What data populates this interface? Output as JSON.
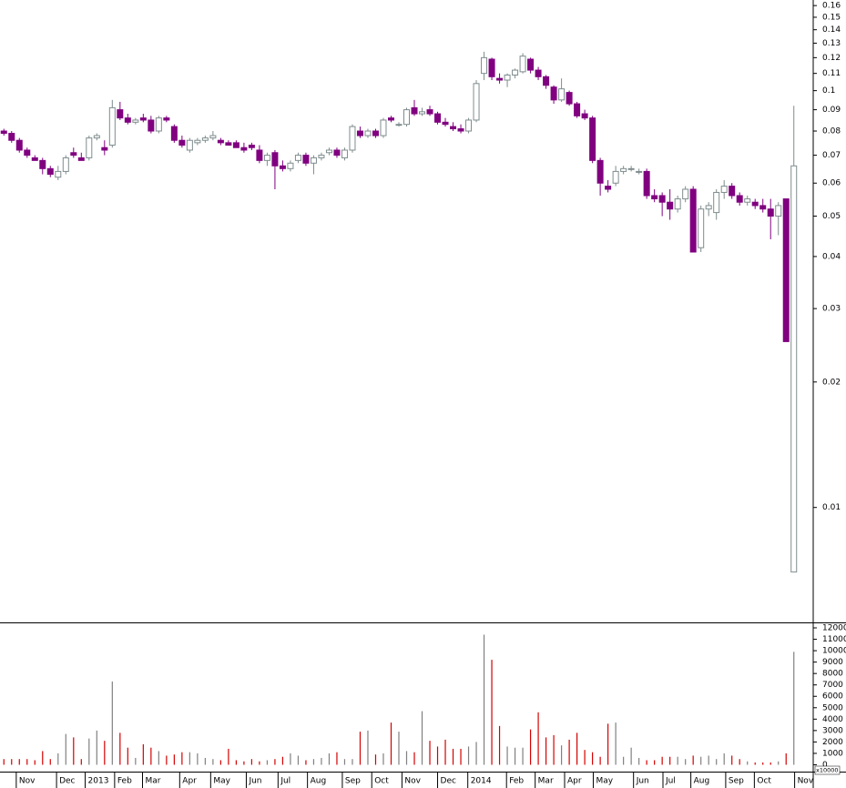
{
  "chart_data": {
    "type": "candlestick",
    "log_scale": true,
    "ylim": [
      0.0053,
      0.165
    ],
    "yticks": [
      0.01,
      0.02,
      0.03,
      0.04,
      0.05,
      0.06,
      0.07,
      0.08,
      0.09,
      0.1,
      0.11,
      0.12,
      0.13,
      0.14,
      0.15,
      0.16
    ],
    "up_color": "#ffffff",
    "up_edge": "#7f8c8d",
    "down_color": "#800080",
    "xlim": [
      -0.5,
      104.5
    ],
    "xticks": [
      {
        "value": 1.6,
        "label": "Nov"
      },
      {
        "value": 6.8,
        "label": "Dec"
      },
      {
        "value": 10.5,
        "label": "2013"
      },
      {
        "value": 14.3,
        "label": "Feb"
      },
      {
        "value": 17.9,
        "label": "Mar"
      },
      {
        "value": 22.7,
        "label": "Apr"
      },
      {
        "value": 26.7,
        "label": "May"
      },
      {
        "value": 31.3,
        "label": "Jun"
      },
      {
        "value": 35.4,
        "label": "Jul"
      },
      {
        "value": 39.2,
        "label": "Aug"
      },
      {
        "value": 43.7,
        "label": "Sep"
      },
      {
        "value": 47.5,
        "label": "Oct"
      },
      {
        "value": 51.4,
        "label": "Nov"
      },
      {
        "value": 56,
        "label": "Dec"
      },
      {
        "value": 59.9,
        "label": "2014"
      },
      {
        "value": 64.9,
        "label": "Feb"
      },
      {
        "value": 68.6,
        "label": "Mar"
      },
      {
        "value": 72.4,
        "label": "Apr"
      },
      {
        "value": 76.1,
        "label": "May"
      },
      {
        "value": 81.3,
        "label": "Jun"
      },
      {
        "value": 85.1,
        "label": "Jul"
      },
      {
        "value": 88.7,
        "label": "Aug"
      },
      {
        "value": 93.2,
        "label": "Sep"
      },
      {
        "value": 96.9,
        "label": "Oct"
      },
      {
        "value": 102.1,
        "label": "Nov"
      }
    ],
    "ohlc": [
      [
        0.08,
        0.081,
        0.078,
        0.079
      ],
      [
        0.079,
        0.08,
        0.075,
        0.076
      ],
      [
        0.076,
        0.077,
        0.071,
        0.072
      ],
      [
        0.072,
        0.073,
        0.069,
        0.07
      ],
      [
        0.069,
        0.07,
        0.068,
        0.068
      ],
      [
        0.068,
        0.069,
        0.063,
        0.065
      ],
      [
        0.065,
        0.066,
        0.062,
        0.063
      ],
      [
        0.062,
        0.066,
        0.061,
        0.064
      ],
      [
        0.064,
        0.07,
        0.063,
        0.069
      ],
      [
        0.071,
        0.073,
        0.069,
        0.07
      ],
      [
        0.069,
        0.071,
        0.068,
        0.068
      ],
      [
        0.069,
        0.078,
        0.068,
        0.077
      ],
      [
        0.077,
        0.079,
        0.076,
        0.078
      ],
      [
        0.073,
        0.076,
        0.07,
        0.072
      ],
      [
        0.074,
        0.095,
        0.073,
        0.091
      ],
      [
        0.09,
        0.094,
        0.085,
        0.086
      ],
      [
        0.086,
        0.088,
        0.083,
        0.084
      ],
      [
        0.084,
        0.086,
        0.083,
        0.085
      ],
      [
        0.086,
        0.088,
        0.084,
        0.085
      ],
      [
        0.085,
        0.087,
        0.079,
        0.08
      ],
      [
        0.08,
        0.087,
        0.079,
        0.086
      ],
      [
        0.086,
        0.087,
        0.084,
        0.085
      ],
      [
        0.082,
        0.083,
        0.075,
        0.076
      ],
      [
        0.076,
        0.078,
        0.073,
        0.074
      ],
      [
        0.072,
        0.077,
        0.071,
        0.076
      ],
      [
        0.075,
        0.077,
        0.074,
        0.076
      ],
      [
        0.076,
        0.078,
        0.075,
        0.077
      ],
      [
        0.077,
        0.08,
        0.076,
        0.078
      ],
      [
        0.076,
        0.077,
        0.074,
        0.075
      ],
      [
        0.075,
        0.076,
        0.074,
        0.074
      ],
      [
        0.075,
        0.076,
        0.073,
        0.073
      ],
      [
        0.073,
        0.075,
        0.071,
        0.072
      ],
      [
        0.074,
        0.075,
        0.072,
        0.073
      ],
      [
        0.072,
        0.074,
        0.067,
        0.068
      ],
      [
        0.068,
        0.071,
        0.066,
        0.07
      ],
      [
        0.071,
        0.072,
        0.058,
        0.066
      ],
      [
        0.066,
        0.068,
        0.064,
        0.065
      ],
      [
        0.065,
        0.068,
        0.064,
        0.067
      ],
      [
        0.068,
        0.071,
        0.067,
        0.07
      ],
      [
        0.07,
        0.071,
        0.066,
        0.067
      ],
      [
        0.067,
        0.07,
        0.063,
        0.069
      ],
      [
        0.069,
        0.071,
        0.068,
        0.07
      ],
      [
        0.071,
        0.073,
        0.07,
        0.072
      ],
      [
        0.072,
        0.073,
        0.069,
        0.07
      ],
      [
        0.069,
        0.073,
        0.068,
        0.072
      ],
      [
        0.072,
        0.083,
        0.071,
        0.082
      ],
      [
        0.08,
        0.082,
        0.077,
        0.078
      ],
      [
        0.078,
        0.081,
        0.077,
        0.08
      ],
      [
        0.08,
        0.081,
        0.077,
        0.078
      ],
      [
        0.078,
        0.086,
        0.077,
        0.085
      ],
      [
        0.086,
        0.087,
        0.084,
        0.085
      ],
      [
        0.083,
        0.084,
        0.082,
        0.083
      ],
      [
        0.083,
        0.091,
        0.082,
        0.09
      ],
      [
        0.091,
        0.095,
        0.087,
        0.088
      ],
      [
        0.088,
        0.091,
        0.087,
        0.089
      ],
      [
        0.09,
        0.092,
        0.087,
        0.088
      ],
      [
        0.088,
        0.089,
        0.083,
        0.084
      ],
      [
        0.084,
        0.086,
        0.082,
        0.083
      ],
      [
        0.082,
        0.084,
        0.08,
        0.081
      ],
      [
        0.081,
        0.083,
        0.079,
        0.08
      ],
      [
        0.08,
        0.086,
        0.079,
        0.085
      ],
      [
        0.085,
        0.106,
        0.084,
        0.104
      ],
      [
        0.11,
        0.124,
        0.106,
        0.12
      ],
      [
        0.119,
        0.12,
        0.106,
        0.108
      ],
      [
        0.107,
        0.11,
        0.104,
        0.106
      ],
      [
        0.106,
        0.11,
        0.102,
        0.109
      ],
      [
        0.109,
        0.113,
        0.107,
        0.112
      ],
      [
        0.111,
        0.123,
        0.11,
        0.121
      ],
      [
        0.119,
        0.12,
        0.11,
        0.112
      ],
      [
        0.112,
        0.114,
        0.106,
        0.108
      ],
      [
        0.108,
        0.109,
        0.101,
        0.103
      ],
      [
        0.102,
        0.103,
        0.093,
        0.095
      ],
      [
        0.095,
        0.107,
        0.094,
        0.101
      ],
      [
        0.099,
        0.1,
        0.092,
        0.093
      ],
      [
        0.093,
        0.094,
        0.086,
        0.087
      ],
      [
        0.088,
        0.09,
        0.085,
        0.086
      ],
      [
        0.086,
        0.087,
        0.067,
        0.068
      ],
      [
        0.068,
        0.069,
        0.056,
        0.06
      ],
      [
        0.059,
        0.061,
        0.057,
        0.058
      ],
      [
        0.06,
        0.066,
        0.059,
        0.064
      ],
      [
        0.064,
        0.066,
        0.063,
        0.065
      ],
      [
        0.065,
        0.066,
        0.064,
        0.065
      ],
      [
        0.064,
        0.065,
        0.063,
        0.064
      ],
      [
        0.064,
        0.065,
        0.055,
        0.056
      ],
      [
        0.056,
        0.058,
        0.054,
        0.055
      ],
      [
        0.056,
        0.057,
        0.05,
        0.054
      ],
      [
        0.054,
        0.058,
        0.049,
        0.052
      ],
      [
        0.052,
        0.056,
        0.051,
        0.055
      ],
      [
        0.055,
        0.059,
        0.054,
        0.058
      ],
      [
        0.058,
        0.059,
        0.041,
        0.041
      ],
      [
        0.042,
        0.053,
        0.041,
        0.052
      ],
      [
        0.052,
        0.054,
        0.05,
        0.053
      ],
      [
        0.051,
        0.058,
        0.049,
        0.057
      ],
      [
        0.057,
        0.061,
        0.055,
        0.059
      ],
      [
        0.059,
        0.06,
        0.055,
        0.056
      ],
      [
        0.056,
        0.057,
        0.053,
        0.054
      ],
      [
        0.054,
        0.056,
        0.053,
        0.055
      ],
      [
        0.054,
        0.055,
        0.052,
        0.053
      ],
      [
        0.053,
        0.055,
        0.051,
        0.052
      ],
      [
        0.052,
        0.055,
        0.044,
        0.05
      ],
      [
        0.05,
        0.054,
        0.045,
        0.053
      ],
      [
        0.055,
        0.055,
        0.025,
        0.025
      ],
      [
        0.007,
        0.092,
        0.007,
        0.066
      ]
    ],
    "volume": {
      "ylim": [
        -600,
        12400
      ],
      "yticks": [
        0,
        1000,
        2000,
        3000,
        4000,
        5000,
        6000,
        7000,
        8000,
        9000,
        10000,
        11000,
        12000
      ],
      "unit_label": "x10000",
      "up_color": "#808080",
      "down_color": "#d40000",
      "values": [
        500,
        500,
        500,
        500,
        400,
        1200,
        500,
        1000,
        2700,
        2400,
        500,
        2300,
        3000,
        2100,
        7300,
        2800,
        1500,
        600,
        1800,
        1500,
        1200,
        800,
        900,
        1100,
        1100,
        1000,
        600,
        500,
        400,
        1400,
        400,
        300,
        500,
        300,
        400,
        500,
        700,
        1000,
        800,
        400,
        500,
        600,
        1000,
        1100,
        500,
        500,
        2900,
        3000,
        900,
        1000,
        3700,
        2900,
        1200,
        1100,
        4700,
        2100,
        1600,
        2200,
        1400,
        1400,
        1600,
        2000,
        11400,
        9200,
        3400,
        1600,
        1500,
        1500,
        3100,
        4600,
        2400,
        2600,
        1700,
        2200,
        2800,
        1300,
        1100,
        700,
        3600,
        3700,
        700,
        1500,
        600,
        400,
        400,
        700,
        700,
        700,
        500,
        800,
        700,
        800,
        500,
        1000,
        800,
        500,
        300,
        200,
        200,
        200,
        300,
        1000,
        9900
      ]
    }
  }
}
